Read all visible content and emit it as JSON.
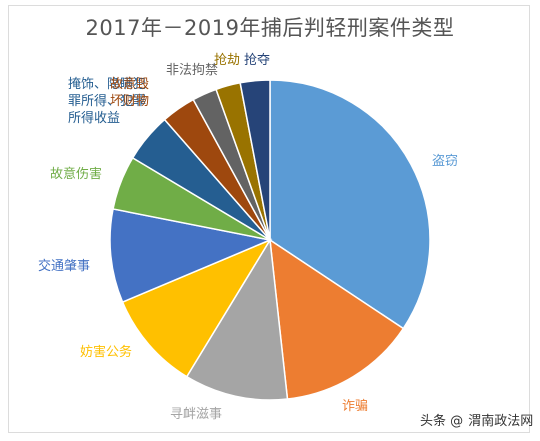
{
  "chart_data": {
    "type": "pie",
    "title": "2017年－2019年捕后判轻刑案件类型",
    "slices": [
      {
        "label": "盗窃",
        "value": 34.5,
        "color": "#5b9bd5"
      },
      {
        "label": "诈骗",
        "value": 14.0,
        "color": "#ed7d31"
      },
      {
        "label": "寻衅滋事",
        "value": 10.5,
        "color": "#a5a5a5"
      },
      {
        "label": "妨害公务",
        "value": 10.0,
        "color": "#ffc000"
      },
      {
        "label": "交通肇事",
        "value": 9.5,
        "color": "#4472c4"
      },
      {
        "label": "故意伤害",
        "value": 5.5,
        "color": "#70ad47"
      },
      {
        "label": "掩饰、隐瞒犯罪所得、犯罪所得收益",
        "value": 5.0,
        "color": "#255e91"
      },
      {
        "label": "故意毁坏财物",
        "value": 3.5,
        "color": "#9e480e"
      },
      {
        "label": "非法拘禁",
        "value": 2.5,
        "color": "#636363"
      },
      {
        "label": "抢劫",
        "value": 2.5,
        "color": "#997300"
      },
      {
        "label": "抢夺",
        "value": 3.0,
        "color": "#264478"
      }
    ]
  },
  "watermark": {
    "prefix": "头条",
    "at": "@",
    "name": "渭南政法网"
  }
}
